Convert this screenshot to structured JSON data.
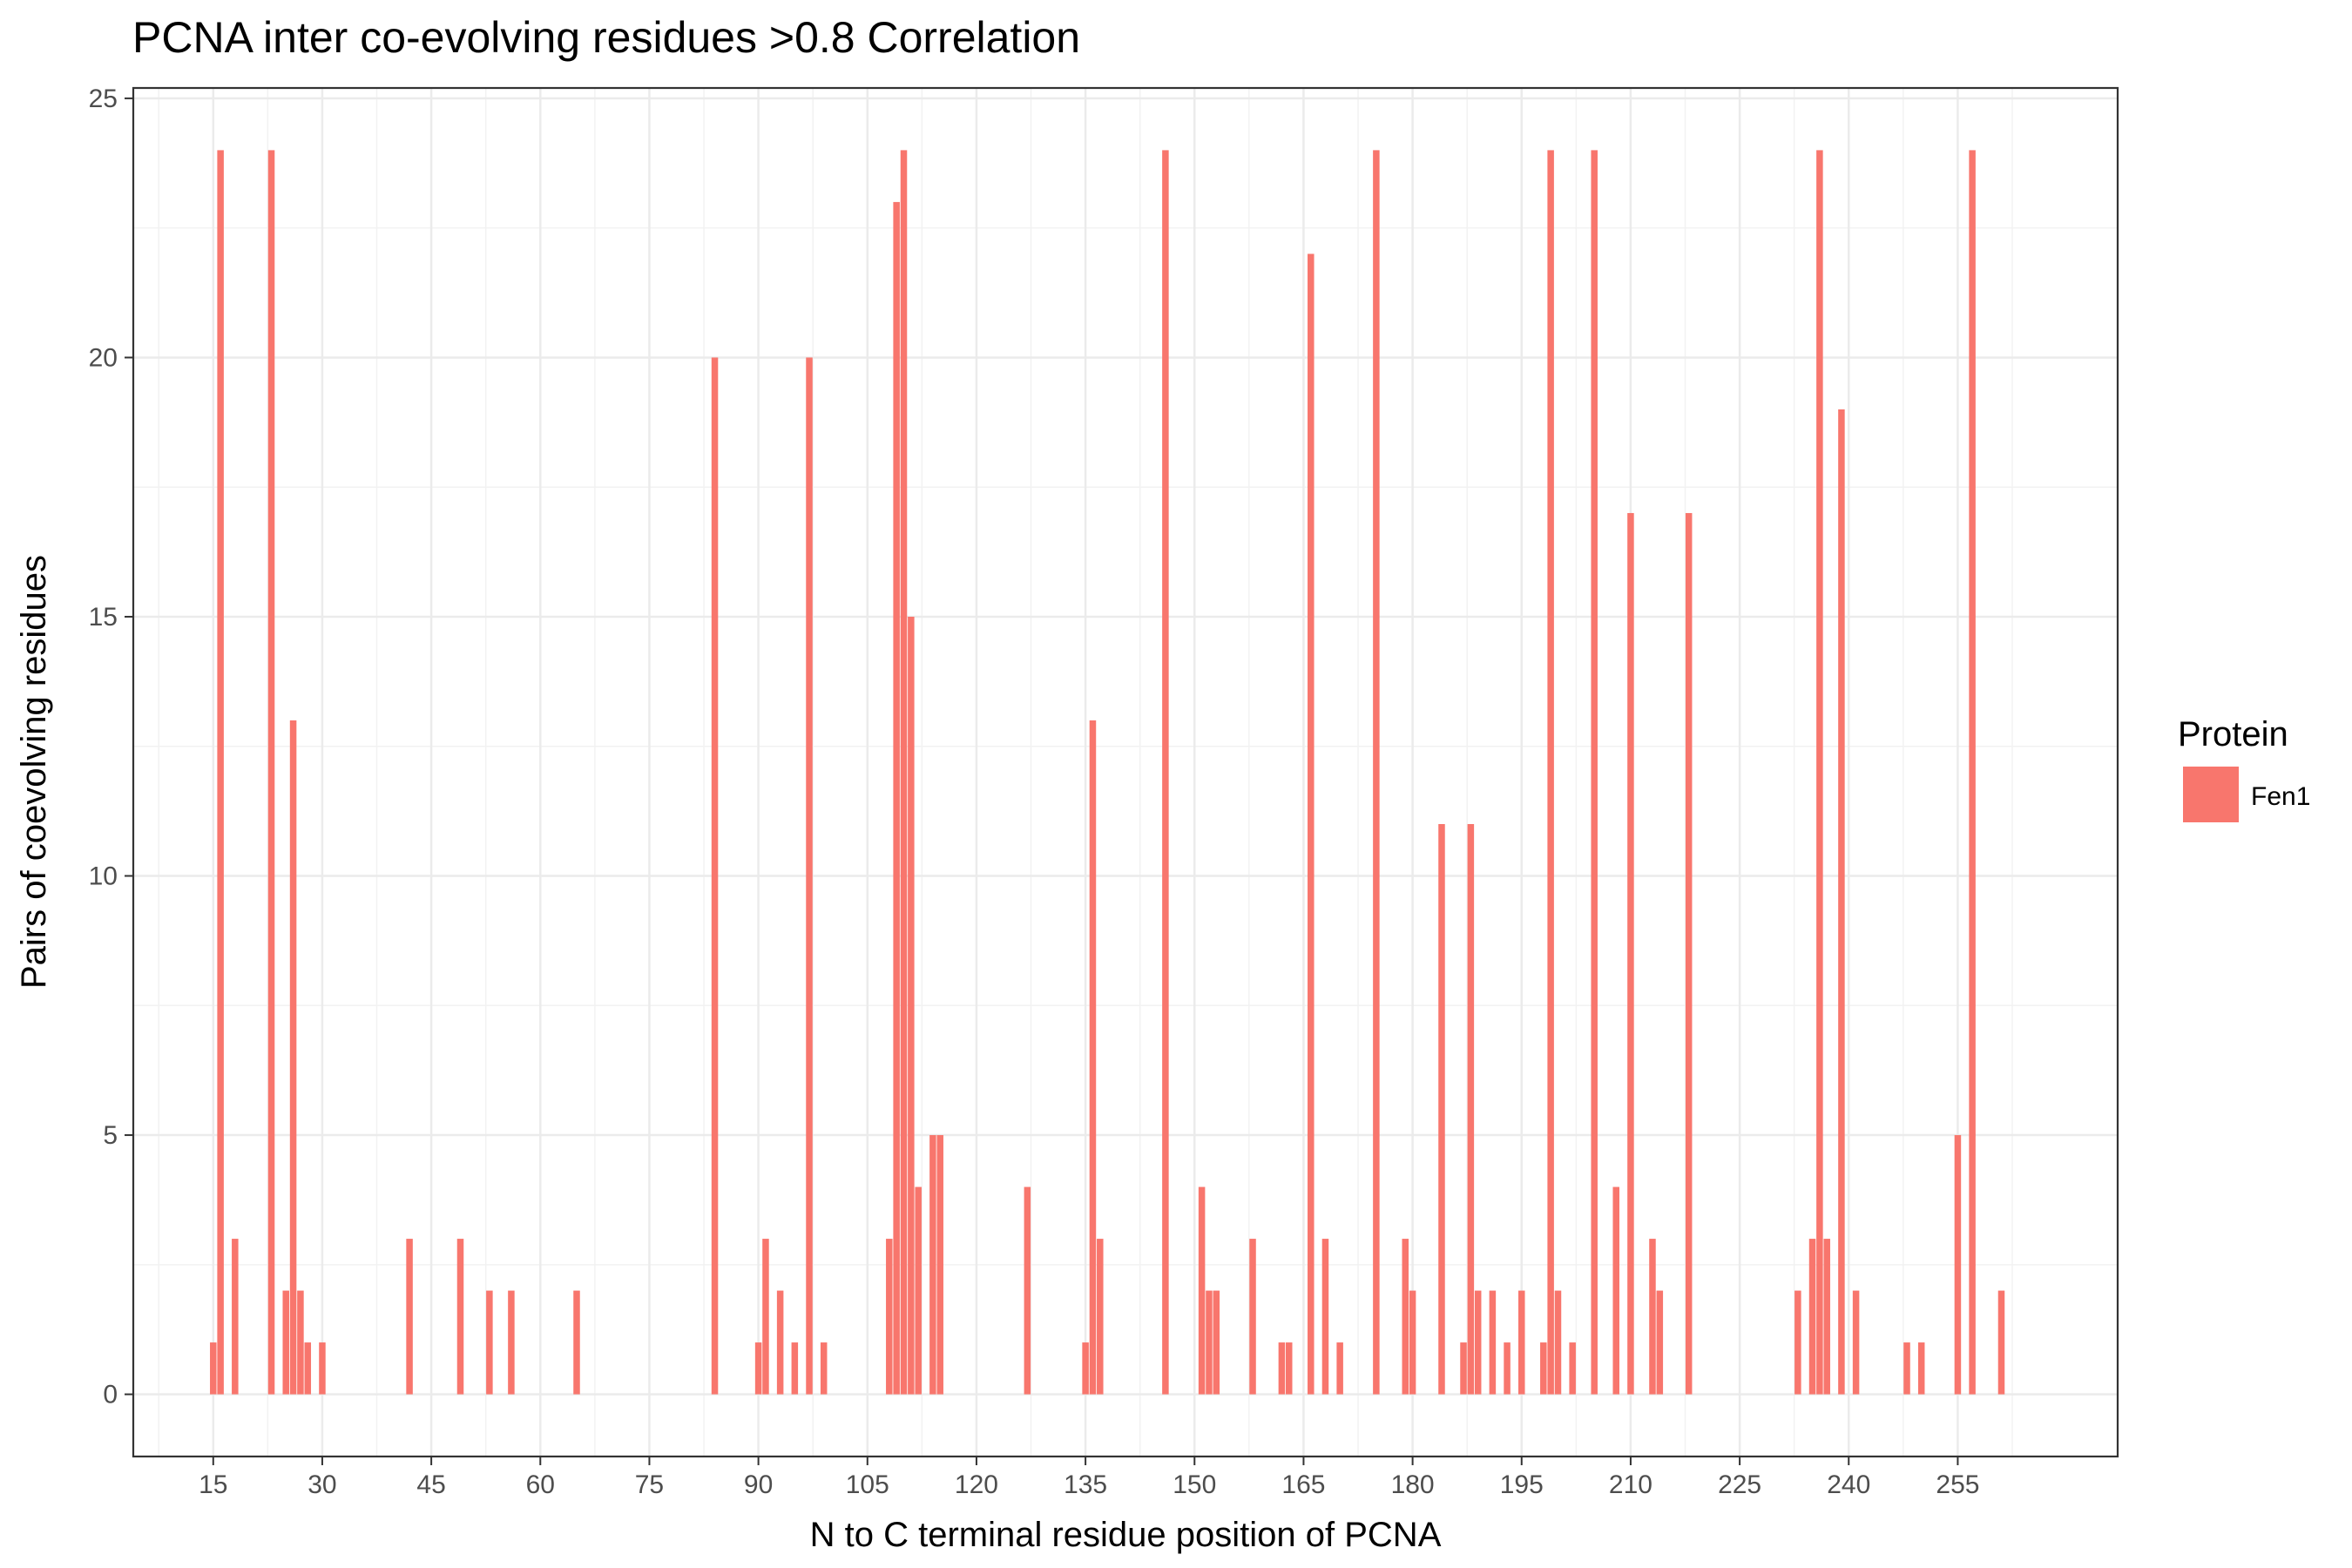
{
  "chart_data": {
    "type": "bar",
    "title": "PCNA inter co-evolving residues >0.8 Correlation",
    "xlabel": "N to C terminal residue position of PCNA",
    "ylabel": "Pairs of coevolving residues",
    "xlim": [
      4,
      277
    ],
    "ylim": [
      -1.2,
      25.2
    ],
    "x_ticks": [
      15,
      30,
      45,
      60,
      75,
      90,
      105,
      120,
      135,
      150,
      165,
      180,
      195,
      210,
      225,
      240,
      255
    ],
    "y_ticks": [
      0,
      5,
      10,
      15,
      20,
      25
    ],
    "grid": true,
    "legend": {
      "title": "Protein",
      "placement": "right",
      "entries": [
        {
          "label": "Fen1",
          "color": "#F8766D"
        }
      ]
    },
    "series": [
      {
        "name": "Fen1",
        "color": "#F8766D",
        "x": [
          15,
          16,
          18,
          23,
          25,
          26,
          27,
          28,
          30,
          42,
          49,
          53,
          56,
          65,
          84,
          90,
          91,
          93,
          95,
          97,
          99,
          108,
          109,
          110,
          111,
          112,
          114,
          115,
          127,
          135,
          136,
          137,
          146,
          151,
          152,
          153,
          158,
          162,
          163,
          166,
          168,
          170,
          175,
          179,
          180,
          184,
          187,
          188,
          189,
          191,
          193,
          195,
          198,
          199,
          200,
          202,
          205,
          208,
          210,
          213,
          214,
          218,
          233,
          235,
          236,
          237,
          239,
          241,
          248,
          250,
          255,
          257,
          261
        ],
        "values": [
          1,
          24,
          3,
          24,
          2,
          13,
          2,
          1,
          1,
          3,
          3,
          2,
          2,
          2,
          20,
          1,
          3,
          2,
          1,
          20,
          1,
          3,
          23,
          24,
          15,
          4,
          5,
          5,
          4,
          1,
          13,
          3,
          24,
          4,
          2,
          2,
          3,
          1,
          1,
          22,
          3,
          1,
          24,
          3,
          2,
          11,
          1,
          11,
          2,
          2,
          1,
          2,
          1,
          24,
          2,
          1,
          24,
          4,
          17,
          3,
          2,
          17,
          2,
          3,
          24,
          3,
          19,
          2,
          1,
          1,
          5,
          24,
          2
        ]
      }
    ]
  }
}
